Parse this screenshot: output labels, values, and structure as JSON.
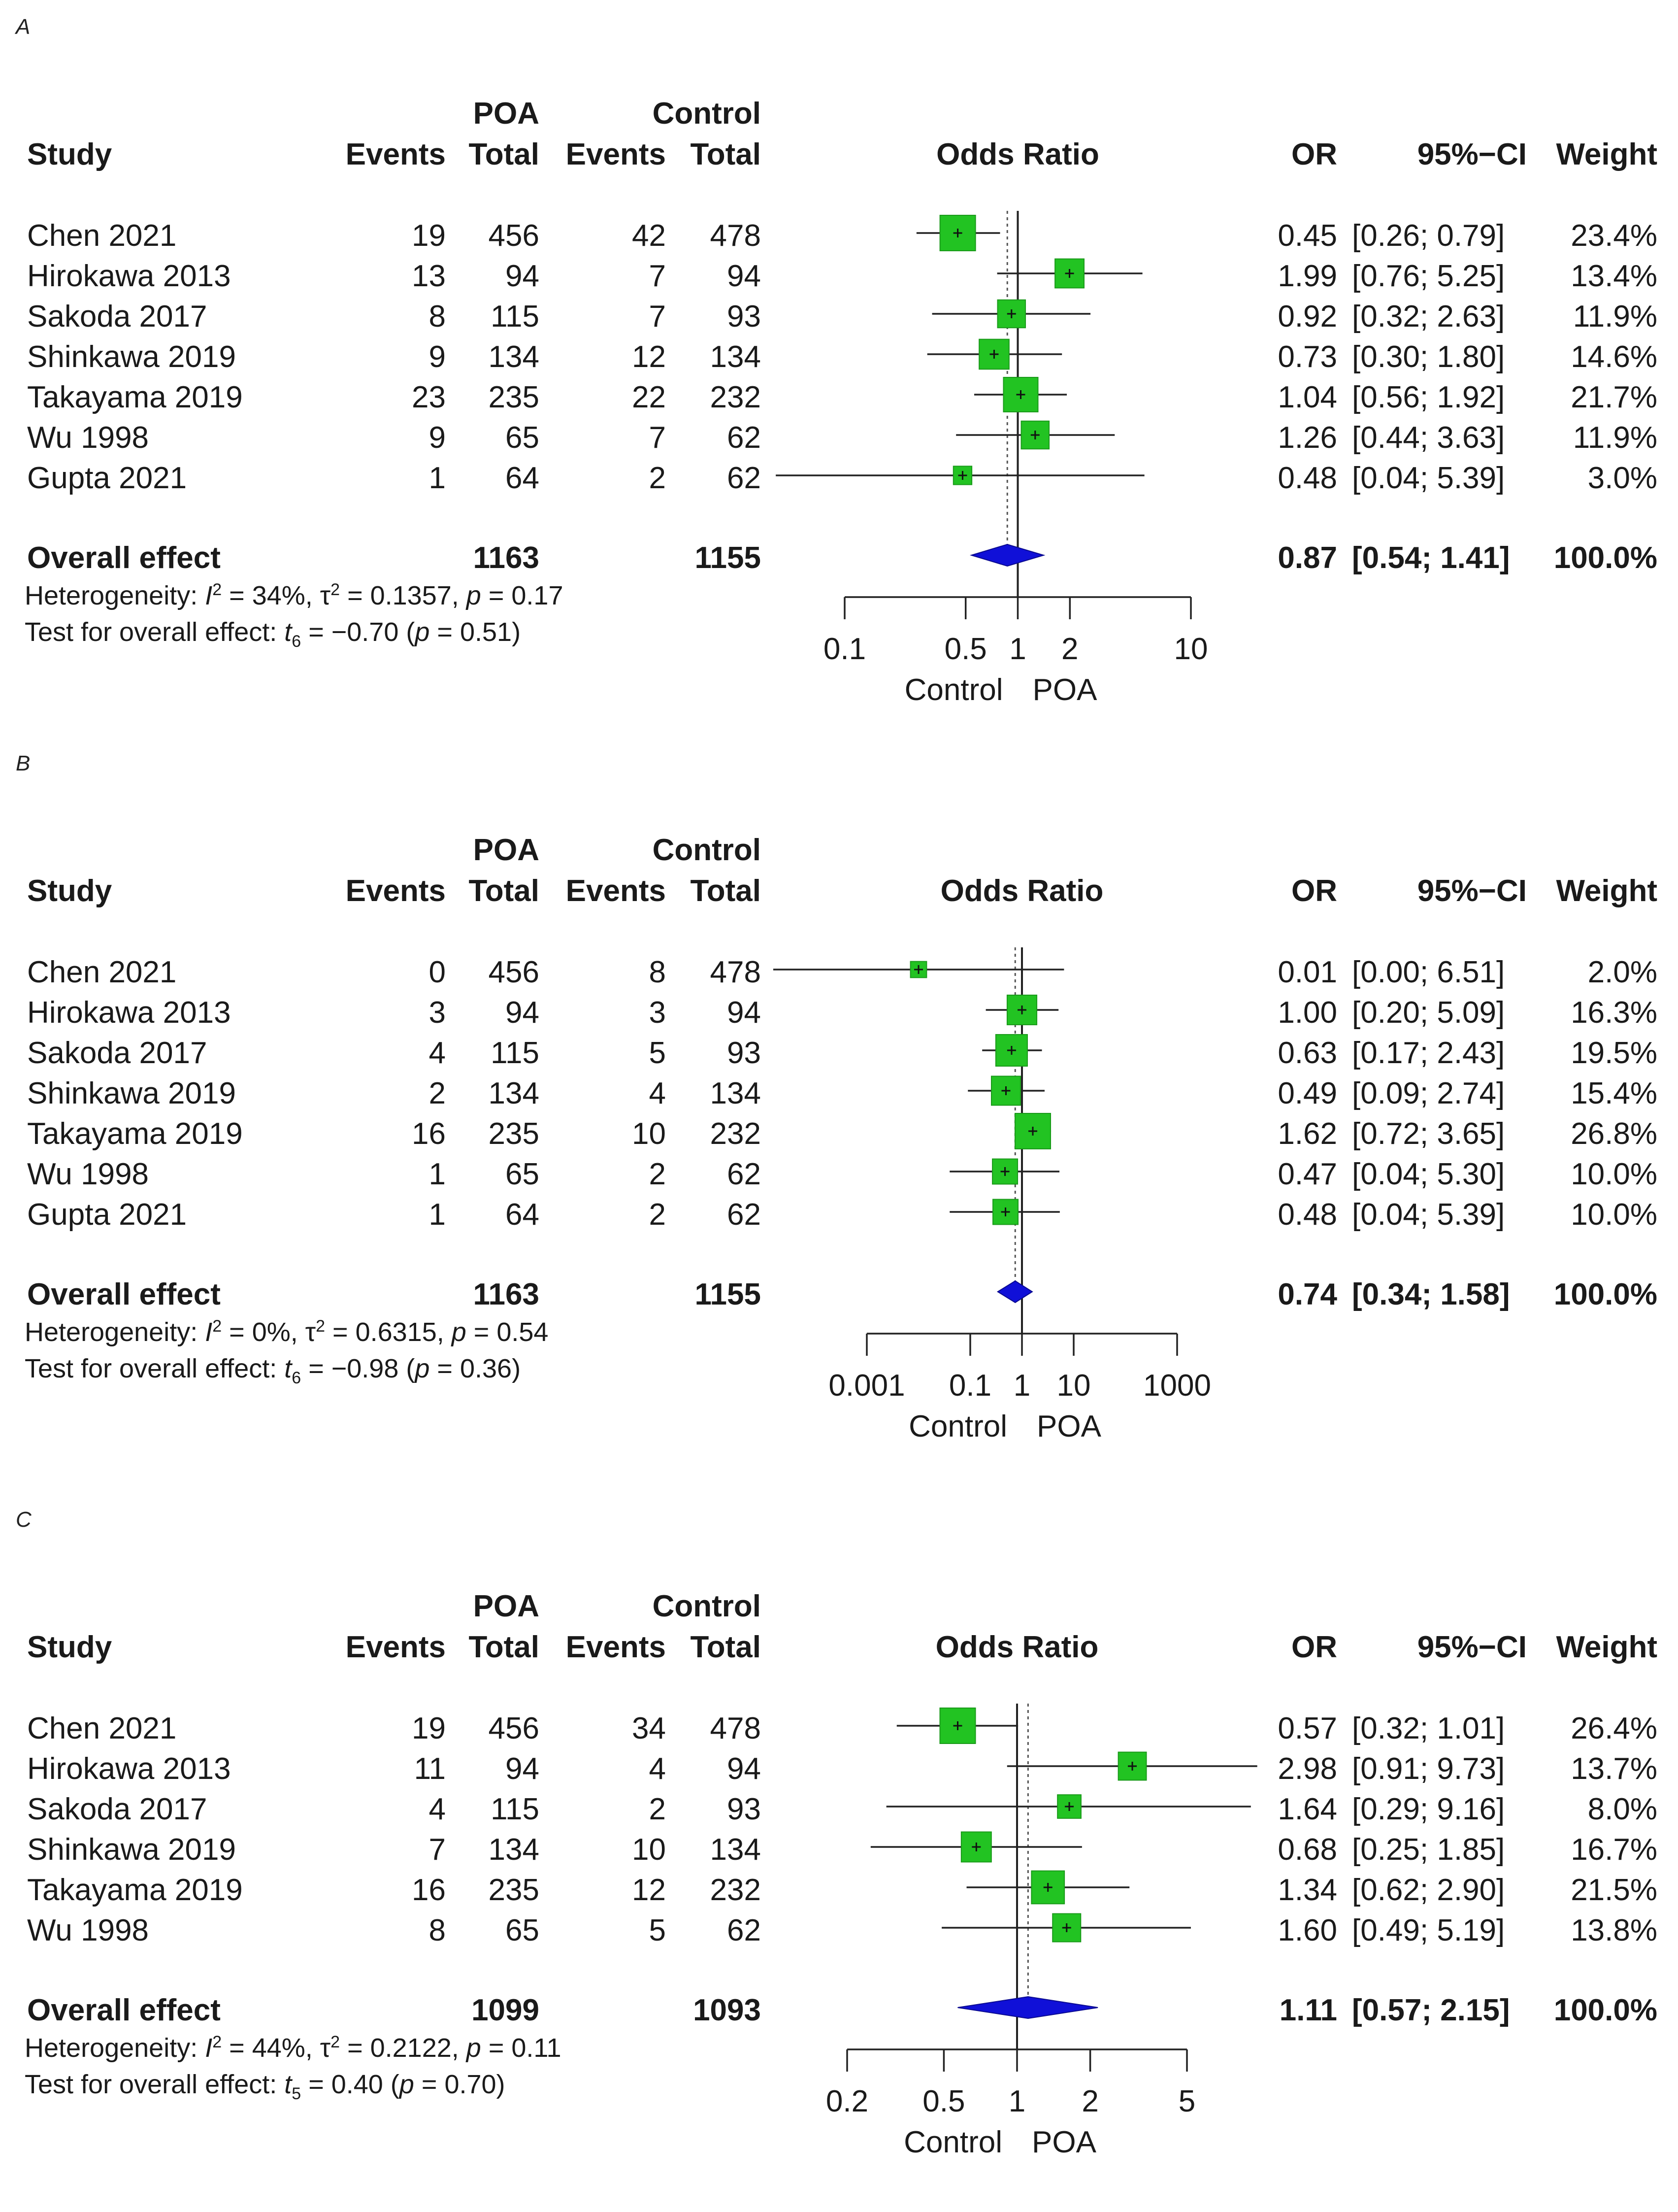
{
  "columns": {
    "study": "Study",
    "events": "Events",
    "total": "Total",
    "group_poa": "POA",
    "group_control": "Control",
    "odds_ratio": "Odds Ratio",
    "or": "OR",
    "ci": "95%−CI",
    "weight": "Weight"
  },
  "axis_labels": {
    "left": "Control",
    "right": "POA"
  },
  "chart_data": [
    {
      "type": "forest",
      "panel_label": "A",
      "xscale": "log",
      "xlim": [
        0.1,
        10
      ],
      "ticks": [
        "0.1",
        "0.5",
        "1",
        "2",
        "10"
      ],
      "tick_values": [
        0.1,
        0.5,
        1,
        2,
        10
      ],
      "reference_line": 1,
      "pooled_line": 0.87,
      "studies": [
        {
          "study": "Chen 2021",
          "poa_events": "19",
          "poa_total": "456",
          "ctrl_events": "42",
          "ctrl_total": "478",
          "or": 0.45,
          "lower": 0.26,
          "upper": 0.79,
          "or_text": "0.45",
          "ci_text": "[0.26; 0.79]",
          "weight_text": "23.4%",
          "weight": 23.4
        },
        {
          "study": "Hirokawa 2013",
          "poa_events": "13",
          "poa_total": "94",
          "ctrl_events": "7",
          "ctrl_total": "94",
          "or": 1.99,
          "lower": 0.76,
          "upper": 5.25,
          "or_text": "1.99",
          "ci_text": "[0.76; 5.25]",
          "weight_text": "13.4%",
          "weight": 13.4
        },
        {
          "study": "Sakoda 2017",
          "poa_events": "8",
          "poa_total": "115",
          "ctrl_events": "7",
          "ctrl_total": "93",
          "or": 0.92,
          "lower": 0.32,
          "upper": 2.63,
          "or_text": "0.92",
          "ci_text": "[0.32; 2.63]",
          "weight_text": "11.9%",
          "weight": 11.9
        },
        {
          "study": "Shinkawa 2019",
          "poa_events": "9",
          "poa_total": "134",
          "ctrl_events": "12",
          "ctrl_total": "134",
          "or": 0.73,
          "lower": 0.3,
          "upper": 1.8,
          "or_text": "0.73",
          "ci_text": "[0.30; 1.80]",
          "weight_text": "14.6%",
          "weight": 14.6
        },
        {
          "study": "Takayama 2019",
          "poa_events": "23",
          "poa_total": "235",
          "ctrl_events": "22",
          "ctrl_total": "232",
          "or": 1.04,
          "lower": 0.56,
          "upper": 1.92,
          "or_text": "1.04",
          "ci_text": "[0.56; 1.92]",
          "weight_text": "21.7%",
          "weight": 21.7
        },
        {
          "study": "Wu 1998",
          "poa_events": "9",
          "poa_total": "65",
          "ctrl_events": "7",
          "ctrl_total": "62",
          "or": 1.26,
          "lower": 0.44,
          "upper": 3.63,
          "or_text": "1.26",
          "ci_text": "[0.44; 3.63]",
          "weight_text": "11.9%",
          "weight": 11.9
        },
        {
          "study": "Gupta 2021",
          "poa_events": "1",
          "poa_total": "64",
          "ctrl_events": "2",
          "ctrl_total": "62",
          "or": 0.48,
          "lower": 0.04,
          "upper": 5.39,
          "or_text": "0.48",
          "ci_text": "[0.04; 5.39]",
          "weight_text": "3.0%",
          "weight": 3.0
        }
      ],
      "overall": {
        "label": "Overall effect",
        "poa_total": "1163",
        "ctrl_total": "1155",
        "or": 0.87,
        "lower": 0.54,
        "upper": 1.41,
        "or_text": "0.87",
        "ci_text": "[0.54; 1.41]",
        "weight_text": "100.0%"
      },
      "heterogeneity": {
        "prefix": "Heterogeneity: ",
        "i2": "34%",
        "tau2": "0.1357",
        "p": "0.17"
      },
      "overall_test": {
        "prefix": "Test for overall effect: ",
        "df": "6",
        "t": "−0.70",
        "p": "0.51"
      }
    },
    {
      "type": "forest",
      "panel_label": "B",
      "xscale": "log",
      "xlim": [
        0.001,
        1000
      ],
      "ticks": [
        "0.001",
        "0.1",
        "1",
        "10",
        "1000"
      ],
      "tick_values": [
        0.001,
        0.1,
        1,
        10,
        1000
      ],
      "reference_line": 1,
      "pooled_line": 0.74,
      "studies": [
        {
          "study": "Chen 2021",
          "poa_events": "0",
          "poa_total": "456",
          "ctrl_events": "8",
          "ctrl_total": "478",
          "or": 0.01,
          "lower": 0.0,
          "upper": 6.51,
          "or_text": "0.01",
          "ci_text": "[0.00; 6.51]",
          "weight_text": "2.0%",
          "weight": 2.0
        },
        {
          "study": "Hirokawa 2013",
          "poa_events": "3",
          "poa_total": "94",
          "ctrl_events": "3",
          "ctrl_total": "94",
          "or": 1.0,
          "lower": 0.2,
          "upper": 5.09,
          "or_text": "1.00",
          "ci_text": "[0.20; 5.09]",
          "weight_text": "16.3%",
          "weight": 16.3
        },
        {
          "study": "Sakoda 2017",
          "poa_events": "4",
          "poa_total": "115",
          "ctrl_events": "5",
          "ctrl_total": "93",
          "or": 0.63,
          "lower": 0.17,
          "upper": 2.43,
          "or_text": "0.63",
          "ci_text": "[0.17; 2.43]",
          "weight_text": "19.5%",
          "weight": 19.5
        },
        {
          "study": "Shinkawa 2019",
          "poa_events": "2",
          "poa_total": "134",
          "ctrl_events": "4",
          "ctrl_total": "134",
          "or": 0.49,
          "lower": 0.09,
          "upper": 2.74,
          "or_text": "0.49",
          "ci_text": "[0.09; 2.74]",
          "weight_text": "15.4%",
          "weight": 15.4
        },
        {
          "study": "Takayama 2019",
          "poa_events": "16",
          "poa_total": "235",
          "ctrl_events": "10",
          "ctrl_total": "232",
          "or": 1.62,
          "lower": 0.72,
          "upper": 3.65,
          "or_text": "1.62",
          "ci_text": "[0.72; 3.65]",
          "weight_text": "26.8%",
          "weight": 26.8
        },
        {
          "study": "Wu 1998",
          "poa_events": "1",
          "poa_total": "65",
          "ctrl_events": "2",
          "ctrl_total": "62",
          "or": 0.47,
          "lower": 0.04,
          "upper": 5.3,
          "or_text": "0.47",
          "ci_text": "[0.04; 5.30]",
          "weight_text": "10.0%",
          "weight": 10.0
        },
        {
          "study": "Gupta 2021",
          "poa_events": "1",
          "poa_total": "64",
          "ctrl_events": "2",
          "ctrl_total": "62",
          "or": 0.48,
          "lower": 0.04,
          "upper": 5.39,
          "or_text": "0.48",
          "ci_text": "[0.04; 5.39]",
          "weight_text": "10.0%",
          "weight": 10.0
        }
      ],
      "overall": {
        "label": "Overall effect",
        "poa_total": "1163",
        "ctrl_total": "1155",
        "or": 0.74,
        "lower": 0.34,
        "upper": 1.58,
        "or_text": "0.74",
        "ci_text": "[0.34; 1.58]",
        "weight_text": "100.0%"
      },
      "heterogeneity": {
        "prefix": "Heterogeneity: ",
        "i2": "0%",
        "tau2": "0.6315",
        "p": "0.54"
      },
      "overall_test": {
        "prefix": "Test for overall effect: ",
        "df": "6",
        "t": "−0.98",
        "p": "0.36"
      }
    },
    {
      "type": "forest",
      "panel_label": "C",
      "xscale": "log",
      "xlim": [
        0.2,
        5
      ],
      "ticks": [
        "0.2",
        "0.5",
        "1",
        "2",
        "5"
      ],
      "tick_values": [
        0.2,
        0.5,
        1,
        2,
        5
      ],
      "reference_line": 1,
      "pooled_line": 1.11,
      "studies": [
        {
          "study": "Chen 2021",
          "poa_events": "19",
          "poa_total": "456",
          "ctrl_events": "34",
          "ctrl_total": "478",
          "or": 0.57,
          "lower": 0.32,
          "upper": 1.01,
          "or_text": "0.57",
          "ci_text": "[0.32; 1.01]",
          "weight_text": "26.4%",
          "weight": 26.4
        },
        {
          "study": "Hirokawa 2013",
          "poa_events": "11",
          "poa_total": "94",
          "ctrl_events": "4",
          "ctrl_total": "94",
          "or": 2.98,
          "lower": 0.91,
          "upper": 9.73,
          "or_text": "2.98",
          "ci_text": "[0.91; 9.73]",
          "weight_text": "13.7%",
          "weight": 13.7
        },
        {
          "study": "Sakoda 2017",
          "poa_events": "4",
          "poa_total": "115",
          "ctrl_events": "2",
          "ctrl_total": "93",
          "or": 1.64,
          "lower": 0.29,
          "upper": 9.16,
          "or_text": "1.64",
          "ci_text": "[0.29; 9.16]",
          "weight_text": "8.0%",
          "weight": 8.0
        },
        {
          "study": "Shinkawa 2019",
          "poa_events": "7",
          "poa_total": "134",
          "ctrl_events": "10",
          "ctrl_total": "134",
          "or": 0.68,
          "lower": 0.25,
          "upper": 1.85,
          "or_text": "0.68",
          "ci_text": "[0.25; 1.85]",
          "weight_text": "16.7%",
          "weight": 16.7
        },
        {
          "study": "Takayama 2019",
          "poa_events": "16",
          "poa_total": "235",
          "ctrl_events": "12",
          "ctrl_total": "232",
          "or": 1.34,
          "lower": 0.62,
          "upper": 2.9,
          "or_text": "1.34",
          "ci_text": "[0.62; 2.90]",
          "weight_text": "21.5%",
          "weight": 21.5
        },
        {
          "study": "Wu 1998",
          "poa_events": "8",
          "poa_total": "65",
          "ctrl_events": "5",
          "ctrl_total": "62",
          "or": 1.6,
          "lower": 0.49,
          "upper": 5.19,
          "or_text": "1.60",
          "ci_text": "[0.49; 5.19]",
          "weight_text": "13.8%",
          "weight": 13.8
        }
      ],
      "overall": {
        "label": "Overall effect",
        "poa_total": "1099",
        "ctrl_total": "1093",
        "or": 1.11,
        "lower": 0.57,
        "upper": 2.15,
        "or_text": "1.11",
        "ci_text": "[0.57; 2.15]",
        "weight_text": "100.0%"
      },
      "heterogeneity": {
        "prefix": "Heterogeneity: ",
        "i2": "44%",
        "tau2": "0.2122",
        "p": "0.11"
      },
      "overall_test": {
        "prefix": "Test for overall effect: ",
        "df": "5",
        "t": "0.40",
        "p": "0.70"
      }
    }
  ],
  "colors": {
    "box": "#22c322",
    "box_edge": "#1a9a1a",
    "diamond": "#1010d8",
    "line": "#222222"
  }
}
